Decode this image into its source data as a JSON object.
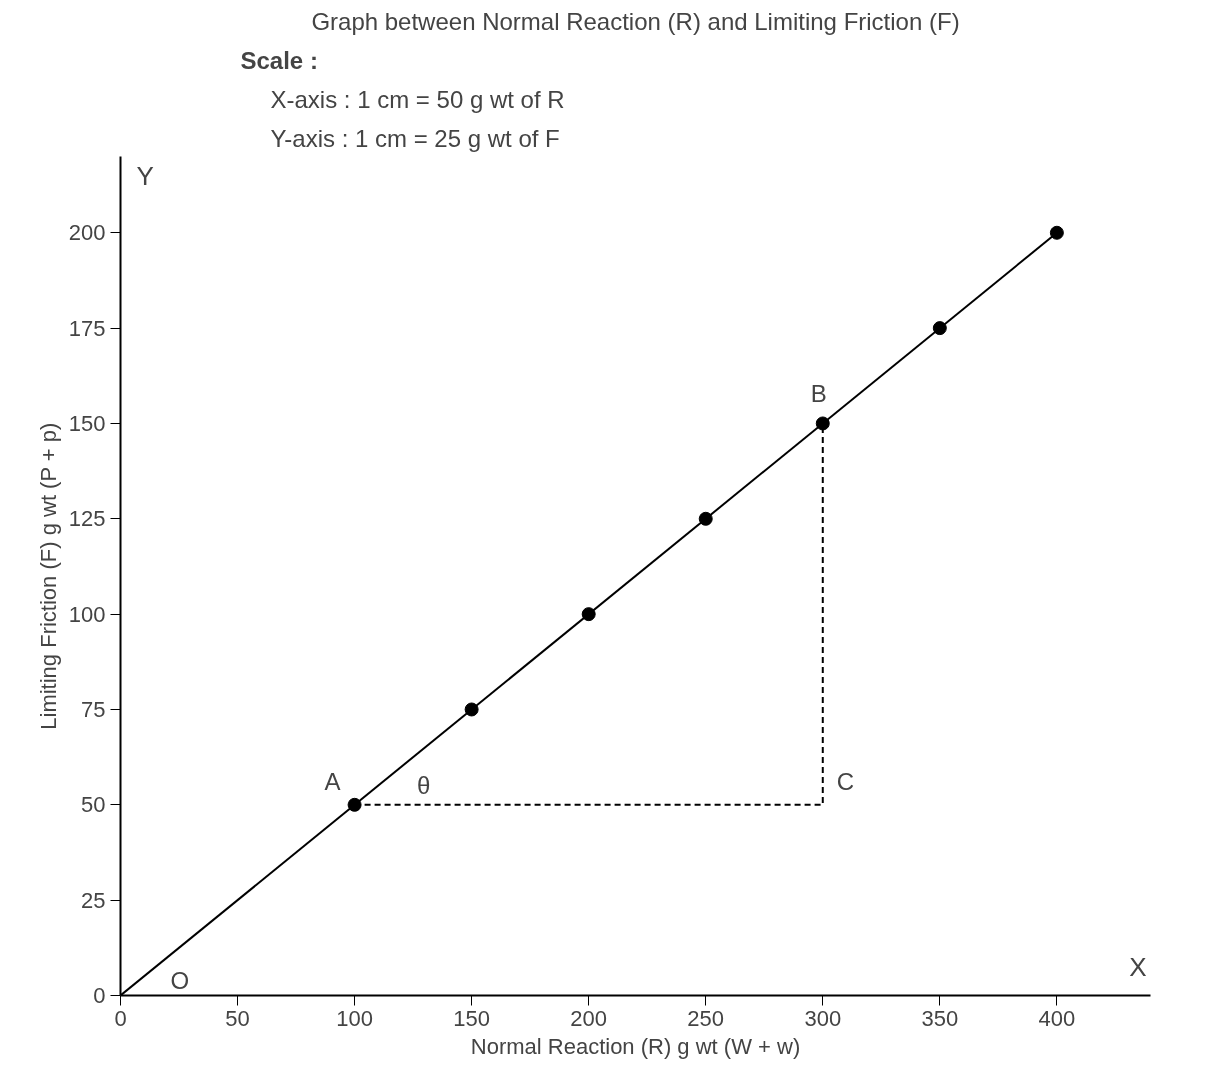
{
  "chart_data": {
    "type": "line",
    "title": "Graph between Normal Reaction (R) and Limiting Friction (F)",
    "subtitle": "Scale :",
    "xlabel": "Normal Reaction (R) g wt (W + w)",
    "ylabel": "Limiting Friction (F) g wt (P + p)",
    "xlim": [
      0,
      440
    ],
    "ylim": [
      0,
      220
    ],
    "xticks": [
      0,
      50,
      100,
      150,
      200,
      250,
      300,
      350,
      400
    ],
    "yticks": [
      0,
      25,
      50,
      75,
      100,
      125,
      150,
      175,
      200
    ],
    "grid": false,
    "series": [
      {
        "color": "#000000",
        "line_style": "solid",
        "x": [
          0,
          400
        ],
        "values": [
          0,
          200
        ]
      },
      {
        "type": "scatter",
        "color": "#000000",
        "marker": "circle",
        "x": [
          100,
          150,
          200,
          250,
          300,
          350,
          400
        ],
        "values": [
          50,
          75,
          100,
          125,
          150,
          175,
          200
        ]
      },
      {
        "color": "#000000",
        "line_style": "dashed",
        "x": [
          100,
          300,
          300
        ],
        "values": [
          50,
          50,
          150
        ]
      }
    ],
    "annotations": [
      "X-axis : 1 cm = 50 g wt of R",
      "Y-axis : 1 cm = 25 g wt of F",
      "X",
      "Y",
      {
        "text": "O",
        "x": 0,
        "y": 0
      },
      {
        "text": "A",
        "x": 100,
        "y": 50
      },
      {
        "text": "B",
        "x": 300,
        "y": 150
      },
      {
        "text": "C",
        "x": 300,
        "y": 50
      },
      {
        "text": "θ",
        "x": 125,
        "y": 50
      }
    ]
  }
}
